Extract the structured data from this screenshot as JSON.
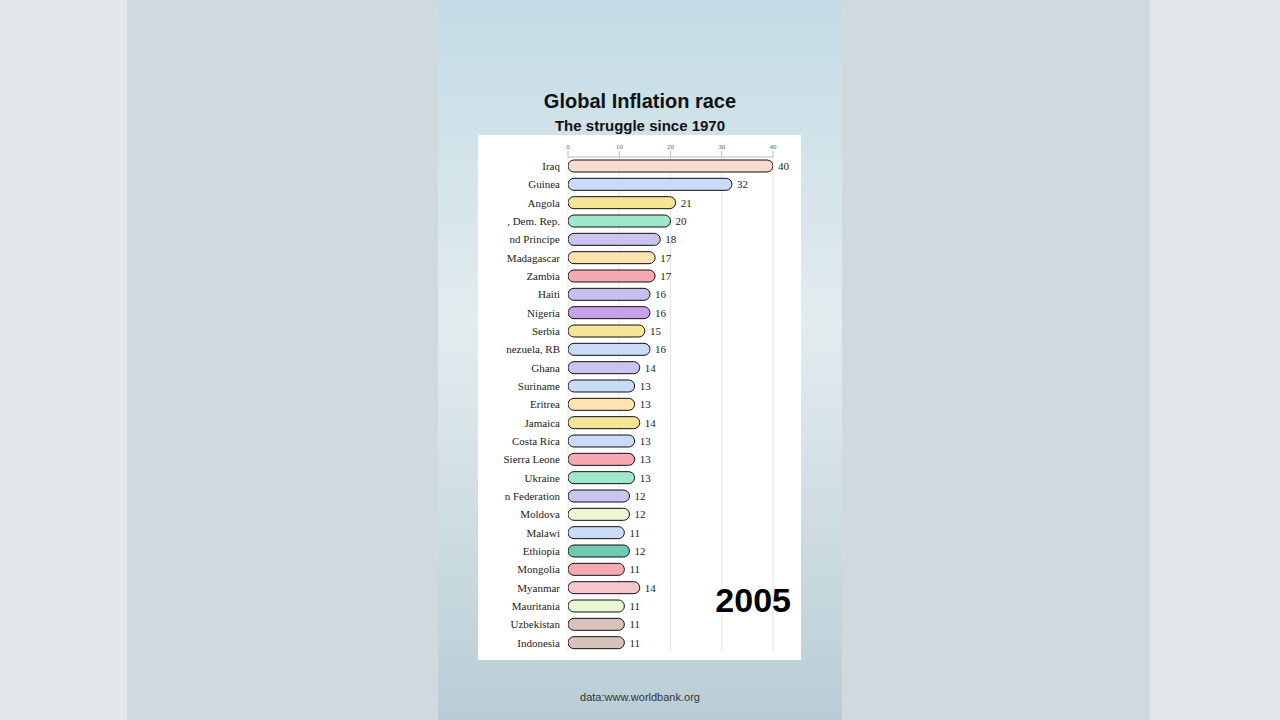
{
  "chart_data": {
    "type": "bar",
    "title": "Global Inflation race",
    "subtitle": "The struggle since 1970",
    "annotation": "2005",
    "source": "data:www.worldbank.org",
    "orientation": "horizontal",
    "categories": [
      "Iraq",
      "Guinea",
      "Angola",
      ", Dem. Rep.",
      "nd Principe",
      "Madagascar",
      "Zambia",
      "Haiti",
      "Nigeria",
      "Serbia",
      "nezuela, RB",
      "Ghana",
      "Suriname",
      "Eritrea",
      "Jamaica",
      "Costa Rica",
      "Sierra Leone",
      "Ukraine",
      "n Federation",
      "Moldova",
      "Malawi",
      "Ethiopia",
      "Mongolia",
      "Myanmar",
      "Mauritania",
      "Uzbekistan",
      "Indonesia"
    ],
    "values": [
      40,
      32,
      21,
      20,
      18,
      17,
      17,
      16,
      16,
      15,
      16,
      14,
      13,
      13,
      14,
      13,
      13,
      13,
      12,
      12,
      11,
      12,
      11,
      14,
      11,
      11,
      11
    ],
    "colors": [
      "#f5dcd0",
      "#c9dbf7",
      "#f6e497",
      "#9fe8c9",
      "#c9c5f0",
      "#fde3b0",
      "#f7a9b1",
      "#c5c1ef",
      "#c8a2e8",
      "#f6e497",
      "#c9dbf7",
      "#c9c5f0",
      "#c9dbf7",
      "#fde3b0",
      "#f6e497",
      "#c9dbf7",
      "#f7a9b1",
      "#9fe8c9",
      "#c9c5f0",
      "#e9f8d2",
      "#c9dbf7",
      "#72c9b1",
      "#f7a9b1",
      "#f5c6cc",
      "#e9f8d2",
      "#d9c2ba",
      "#d9c2ba"
    ],
    "xlim": [
      0,
      40
    ],
    "xticks": [
      0,
      10,
      20,
      30,
      40
    ],
    "grid": true,
    "data_labels": true
  }
}
